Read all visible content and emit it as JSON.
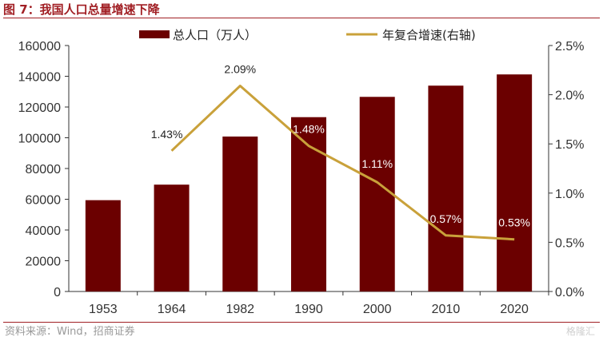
{
  "header": {
    "title": "图 7：我国人口总量增速下降"
  },
  "footer": {
    "source": "资料来源：Wind，招商证券",
    "watermark": "格隆汇"
  },
  "colors": {
    "bar": "#6b0000",
    "line": "#c9a13a",
    "accent": "#a11f24"
  },
  "chart_data": {
    "type": "bar+line",
    "categories": [
      "1953",
      "1964",
      "1982",
      "1990",
      "2000",
      "2010",
      "2020"
    ],
    "series": [
      {
        "name": "总人口（万人）",
        "type": "bar",
        "axis": "left",
        "values": [
          59400,
          69500,
          100800,
          113400,
          126600,
          133900,
          141200
        ]
      },
      {
        "name": "年复合增速(右轴)",
        "type": "line",
        "axis": "right",
        "values": [
          null,
          1.43,
          2.09,
          1.48,
          1.11,
          0.57,
          0.53
        ],
        "labels": [
          "",
          "1.43%",
          "2.09%",
          "1.48%",
          "1.11%",
          "0.57%",
          "0.53%"
        ]
      }
    ],
    "y_left": {
      "range": [
        0,
        160000
      ],
      "ticks": [
        "0",
        "20000",
        "40000",
        "60000",
        "80000",
        "100000",
        "120000",
        "140000",
        "160000"
      ]
    },
    "y_right": {
      "range": [
        0,
        2.5
      ],
      "ticks": [
        "0.0%",
        "0.5%",
        "1.0%",
        "1.5%",
        "2.0%",
        "2.5%"
      ]
    },
    "legend": {
      "placement": "top"
    },
    "grid": false
  }
}
